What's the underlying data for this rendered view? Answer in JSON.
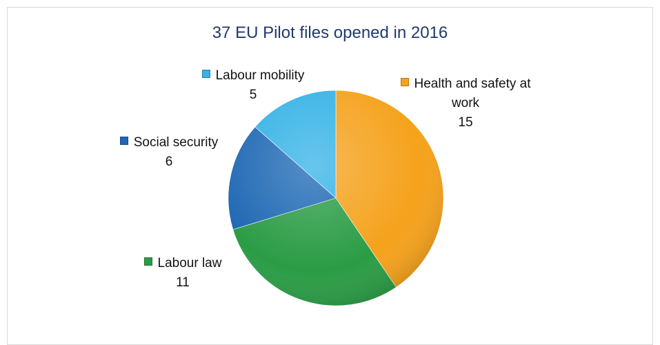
{
  "chart_data": {
    "type": "pie",
    "title": "37 EU Pilot files opened in 2016",
    "categories": [
      "Health and safety at work",
      "Labour law",
      "Social security",
      "Labour mobility"
    ],
    "values": [
      15,
      11,
      6,
      5
    ],
    "colors": [
      "#f5a21c",
      "#2b9c46",
      "#1e68b4",
      "#35b2e6"
    ]
  }
}
